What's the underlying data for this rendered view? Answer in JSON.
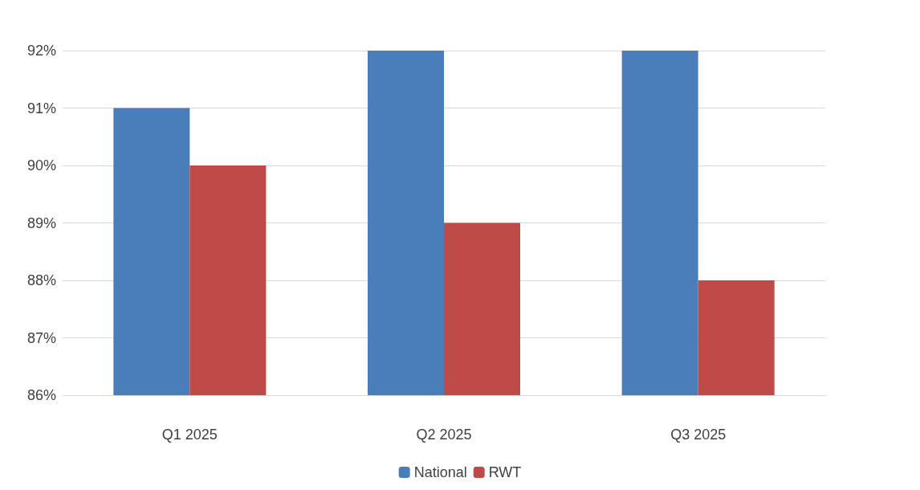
{
  "chart_data": {
    "type": "bar",
    "categories": [
      "Q1 2025",
      "Q2 2025",
      "Q3 2025"
    ],
    "series": [
      {
        "name": "National",
        "color": "#4a7ebb",
        "values": [
          91,
          92,
          92
        ]
      },
      {
        "name": "RWT",
        "color": "#be4b48",
        "values": [
          90,
          89,
          88
        ]
      }
    ],
    "ylim": [
      86,
      92
    ],
    "yticks": [
      {
        "value": 86,
        "label": "86%"
      },
      {
        "value": 87,
        "label": "87%"
      },
      {
        "value": 88,
        "label": "88%"
      },
      {
        "value": 89,
        "label": "89%"
      },
      {
        "value": 90,
        "label": "90%"
      },
      {
        "value": 91,
        "label": "91%"
      },
      {
        "value": 92,
        "label": "92%"
      }
    ],
    "grid": true,
    "legend": "bottom"
  }
}
